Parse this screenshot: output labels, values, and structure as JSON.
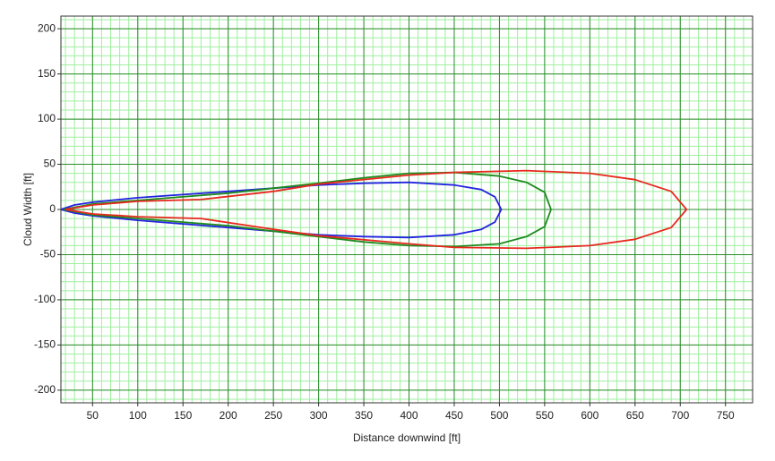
{
  "chart_data": {
    "type": "line",
    "x_label": "Distance downwind [ft]",
    "y_label": "Cloud Width [ft]",
    "xlim": [
      15,
      780
    ],
    "ylim": [
      -214,
      214
    ],
    "xticks": [
      50,
      100,
      150,
      200,
      250,
      300,
      350,
      400,
      450,
      500,
      550,
      600,
      650,
      700,
      750
    ],
    "yticks": [
      -200,
      -150,
      -100,
      -50,
      0,
      50,
      100,
      150,
      200
    ],
    "grid": true,
    "minor_grid": true,
    "grid_color": "#2e8b2e",
    "minor_grid_color": "#9fef9f",
    "series": [
      {
        "color": "#2323e0",
        "x": [
          15,
          30,
          50,
          100,
          200,
          300,
          350,
          400,
          450,
          480,
          495,
          502,
          495,
          480,
          450,
          400,
          350,
          300,
          200,
          100,
          50,
          30,
          15
        ],
        "values": [
          0,
          5,
          8,
          13,
          20,
          27,
          29,
          30,
          27,
          22,
          14,
          0,
          -14,
          -22,
          -28,
          -31,
          -30,
          -28,
          -20,
          -12,
          -7,
          -4,
          0
        ]
      },
      {
        "color": "#1f8a1f",
        "x": [
          18,
          50,
          100,
          200,
          300,
          350,
          400,
          450,
          500,
          530,
          550,
          557,
          550,
          530,
          500,
          450,
          400,
          350,
          300,
          200,
          100,
          50,
          18
        ],
        "values": [
          0,
          6,
          10,
          18,
          29,
          35,
          40,
          41,
          37,
          30,
          19,
          0,
          -19,
          -30,
          -38,
          -41,
          -40,
          -36,
          -30,
          -18,
          -10,
          -6,
          0
        ]
      },
      {
        "color": "#e8281e",
        "x": [
          20,
          50,
          100,
          170,
          250,
          300,
          400,
          450,
          530,
          600,
          650,
          690,
          707,
          690,
          650,
          600,
          530,
          450,
          400,
          300,
          250,
          170,
          100,
          50,
          20
        ],
        "values": [
          0,
          5,
          9,
          11,
          20,
          28,
          38,
          41,
          43,
          40,
          33,
          20,
          0,
          -20,
          -33,
          -40,
          -43,
          -42,
          -38,
          -29,
          -22,
          -10,
          -8,
          -5,
          0
        ]
      }
    ]
  }
}
